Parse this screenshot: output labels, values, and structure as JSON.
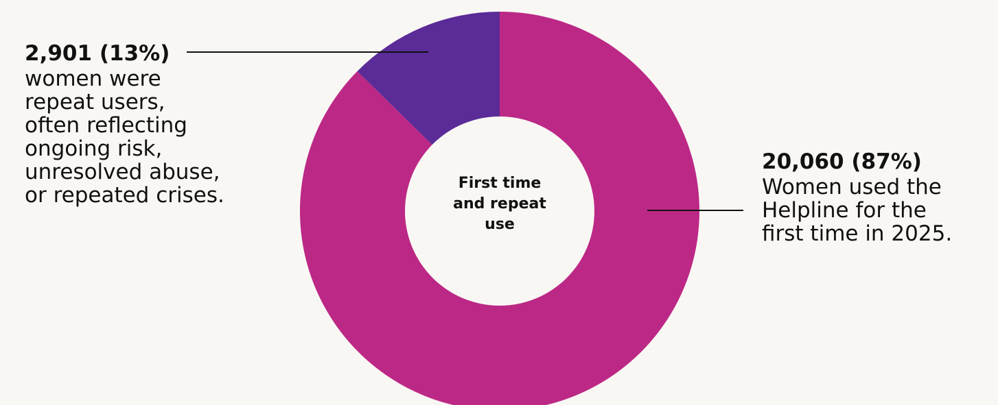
{
  "chart_data": {
    "type": "pie",
    "subtype": "donut",
    "center_label": "First time\nand repeat\nuse",
    "categories": [
      "First time users",
      "Repeat users"
    ],
    "values": [
      20060,
      2901
    ],
    "percentages": [
      87,
      13
    ],
    "colors": [
      "#bc2886",
      "#5b2b97"
    ],
    "legend": "none",
    "annotations": [
      {
        "value_label": "20,060 (87%)",
        "text": "Women used the\nHelpline for the\nfirst time in 2025."
      },
      {
        "value_label": "2,901 (13%)",
        "text": "women were\nrepeat users,\noften reflecting\nongoing risk,\nunresolved abuse,\nor repeated crises."
      }
    ],
    "background": "#f9f7f4"
  }
}
